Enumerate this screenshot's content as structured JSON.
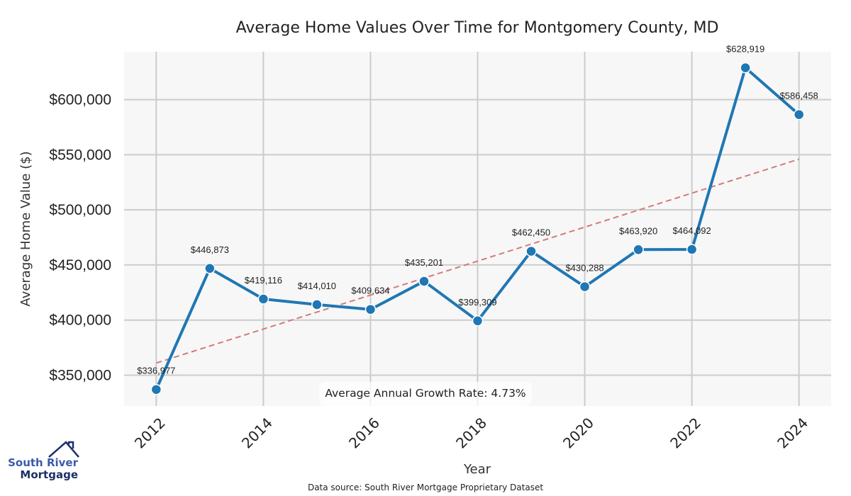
{
  "chart_data": {
    "type": "line",
    "title": "Average Home Values Over Time for Montgomery County, MD",
    "xlabel": "Year",
    "ylabel": "Average Home Value ($)",
    "x": [
      2012,
      2013,
      2014,
      2015,
      2016,
      2017,
      2018,
      2019,
      2020,
      2021,
      2022,
      2023,
      2024
    ],
    "series": [
      {
        "name": "Average Home Value",
        "color": "#1f77b4",
        "values": [
          336977,
          446873,
          419116,
          414010,
          409634,
          435201,
          399309,
          462450,
          430288,
          463920,
          464092,
          628919,
          586458
        ],
        "labels": [
          "$336,977",
          "$446,873",
          "$419,116",
          "$414,010",
          "$409,634",
          "$435,201",
          "$399,309",
          "$462,450",
          "$430,288",
          "$463,920",
          "$464,092",
          "$628,919",
          "$586,458"
        ]
      }
    ],
    "trendline": {
      "name": "Trend",
      "color": "#d47a7a",
      "style": "dashed",
      "start": [
        2012,
        361000
      ],
      "end": [
        2024,
        546000
      ]
    },
    "xticks": [
      "2012",
      "2014",
      "2016",
      "2018",
      "2020",
      "2022",
      "2024"
    ],
    "yticks": [
      {
        "value": 350000,
        "label": "$350,000"
      },
      {
        "value": 400000,
        "label": "$400,000"
      },
      {
        "value": 450000,
        "label": "$450,000"
      },
      {
        "value": 500000,
        "label": "$500,000"
      },
      {
        "value": 550000,
        "label": "$550,000"
      },
      {
        "value": 600000,
        "label": "$600,000"
      }
    ],
    "xlim": [
      2011.4,
      2024.6
    ],
    "ylim": [
      322000,
      643500
    ],
    "grid": true,
    "annotation": "Average Annual Growth Rate: 4.73%",
    "source": "Data source: South River Mortgage Proprietary Dataset"
  },
  "logo": {
    "line1": "South River",
    "line2": "Mortgage",
    "color_primary": "#3b5ba9",
    "color_dark": "#1f2f66"
  },
  "colors": {
    "plot_bg": "#f7f7f7",
    "grid": "#cccccc",
    "line": "#1f77b4",
    "trend": "#d47a7a"
  }
}
